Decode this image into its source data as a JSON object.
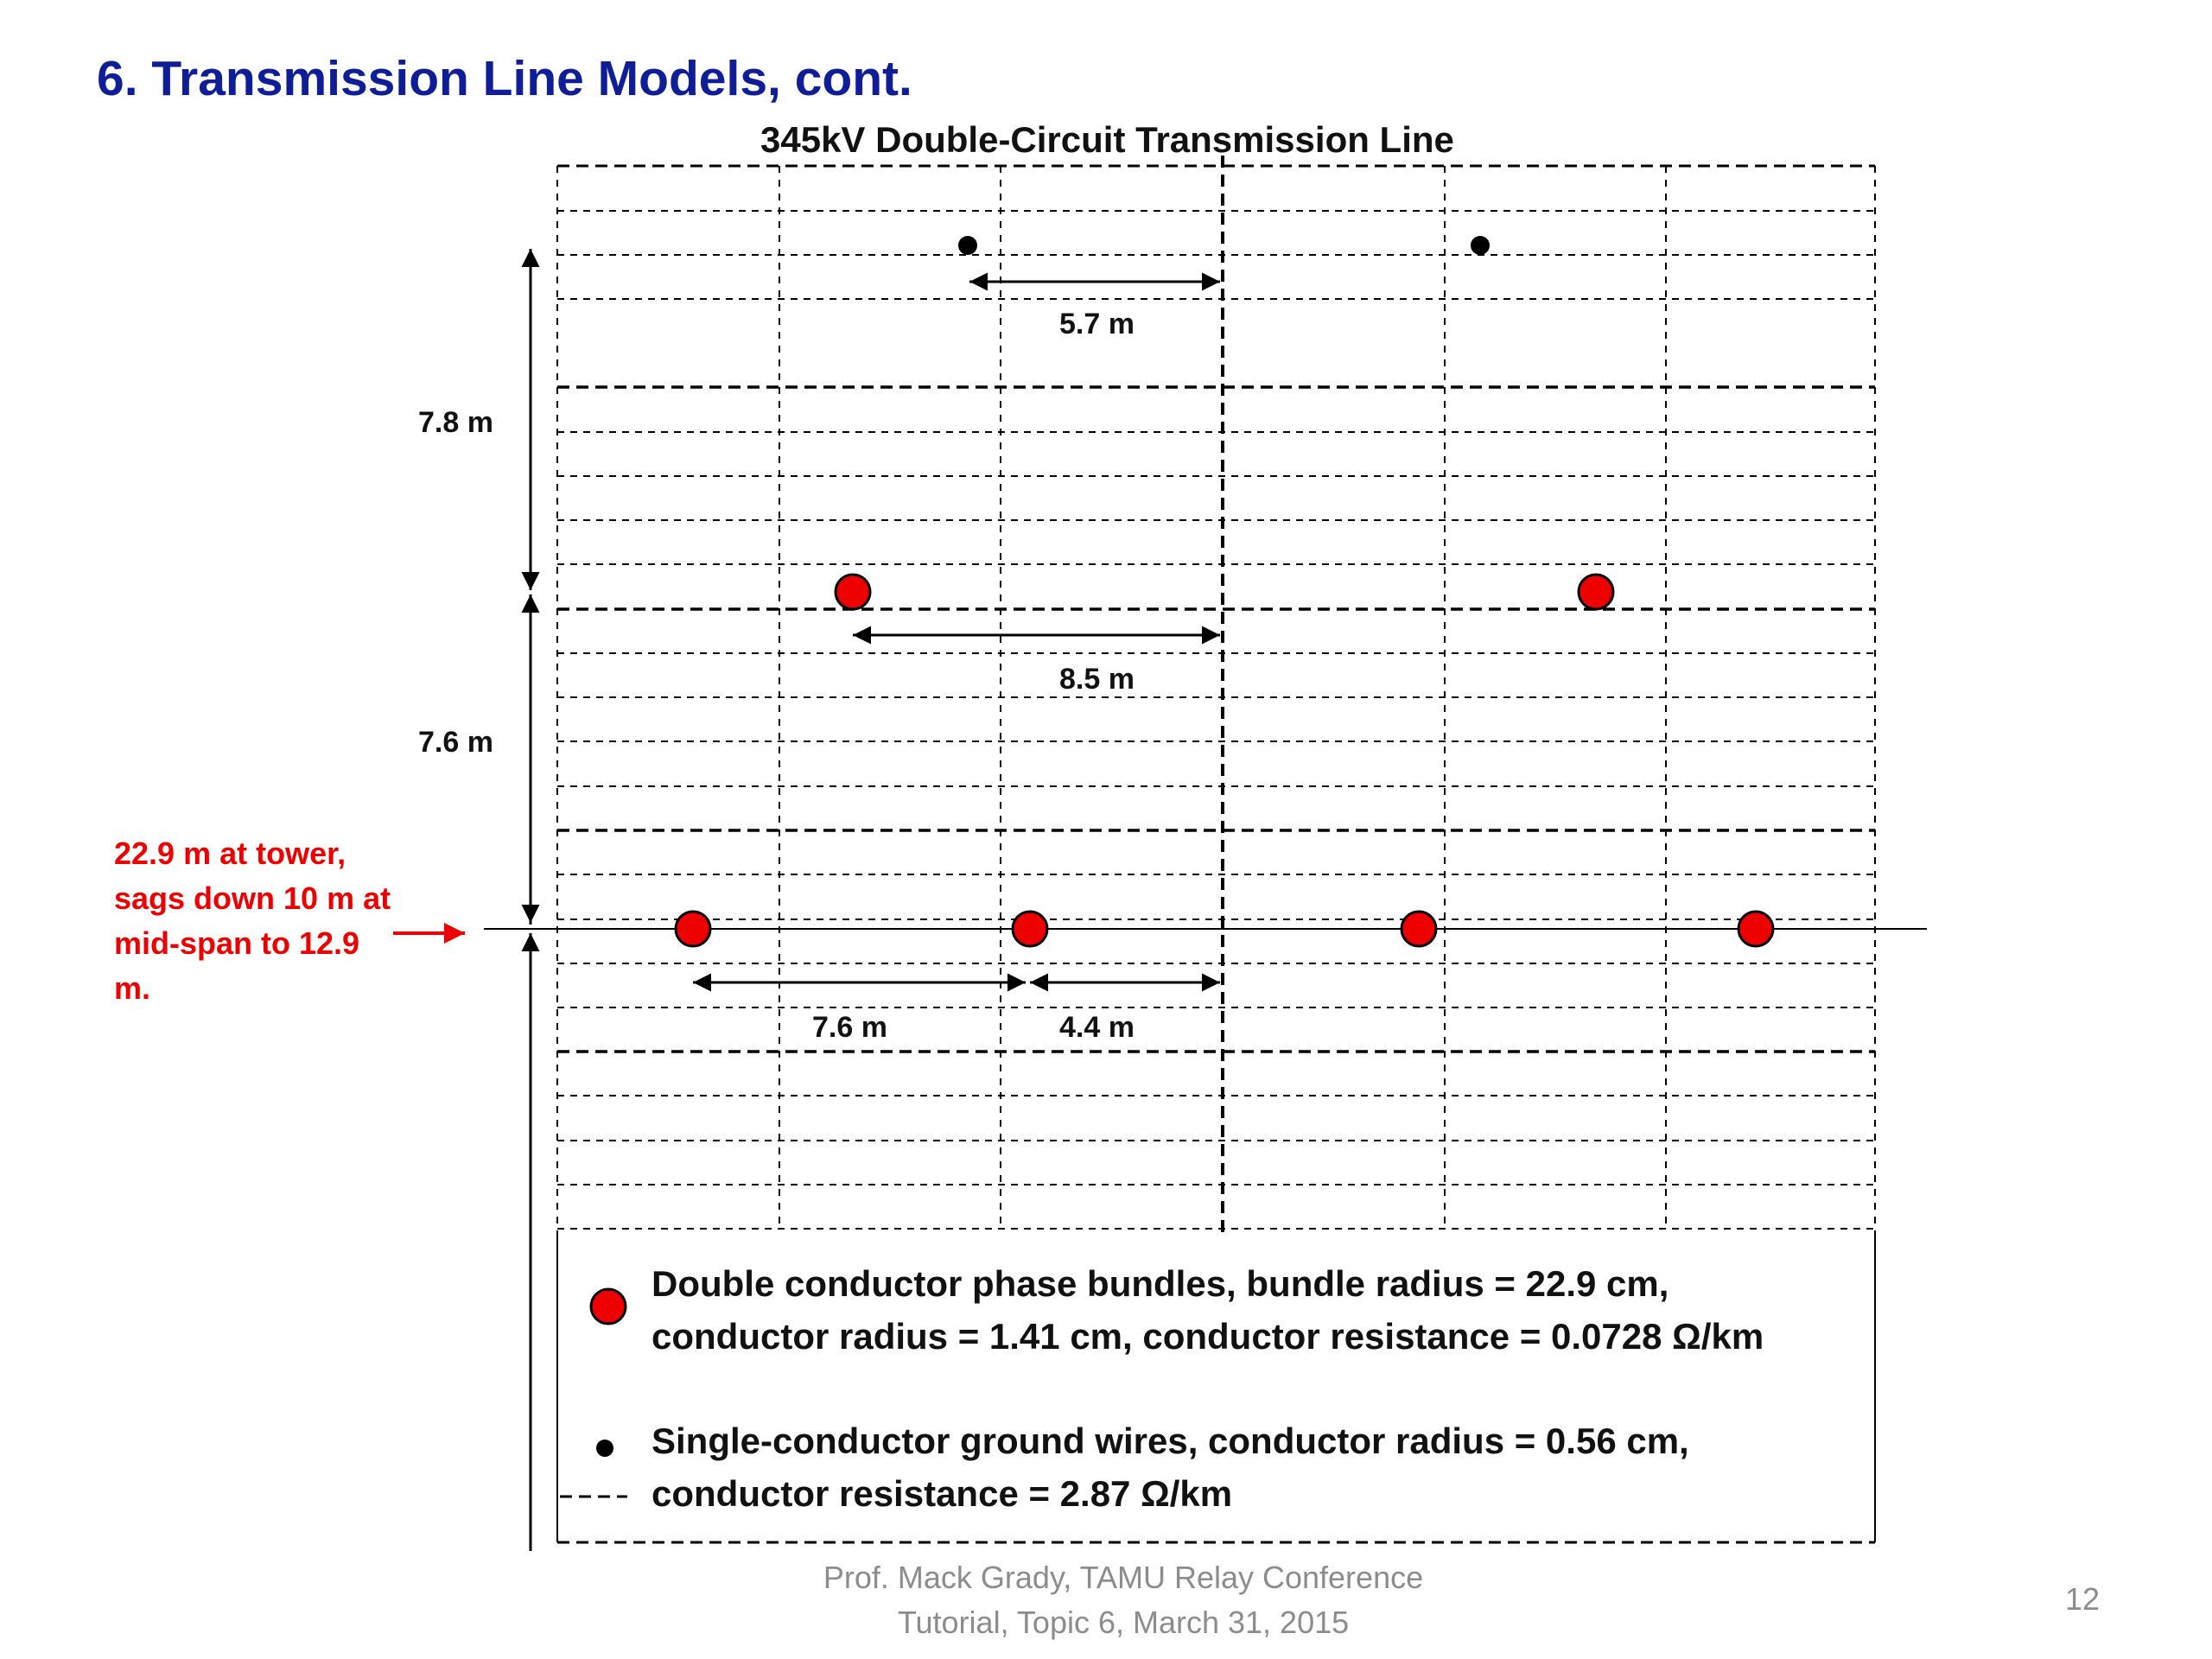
{
  "slide": {
    "title": "6.  Transmission Line Models, cont.",
    "diagram_title": "345kV Double-Circuit Transmission Line",
    "sag_note": "22.9 m at tower, sags down 10 m at mid-span to 12.9 m.",
    "legend": {
      "phase_bundle_line1": "Double conductor phase bundles, bundle radius = 22.9 cm,",
      "phase_bundle_line2": "conductor radius = 1.41 cm, conductor resistance = 0.0728 Ω/km",
      "ground_wire_line1": "Single-conductor ground wires, conductor radius = 0.56 cm,",
      "ground_wire_line2": "conductor resistance = 2.87 Ω/km"
    },
    "footer_line1": "Prof. Mack Grady, TAMU Relay Conference",
    "footer_line2": "Tutorial, Topic 6, March 31, 2015",
    "page_number": "12"
  },
  "dimensions": {
    "ground_wire_offset": "5.7 m",
    "upper_phase_offset": "8.5 m",
    "lower_outer_spacing": "7.6 m",
    "lower_inner_offset": "4.4 m",
    "height_upper_section": "7.8 m",
    "height_lower_section": "7.6 m"
  },
  "colors": {
    "title_blue": "#0f1d96",
    "phase_red": "#ee0000",
    "ground_black": "#000000",
    "footer_gray": "#8c8c8c"
  }
}
